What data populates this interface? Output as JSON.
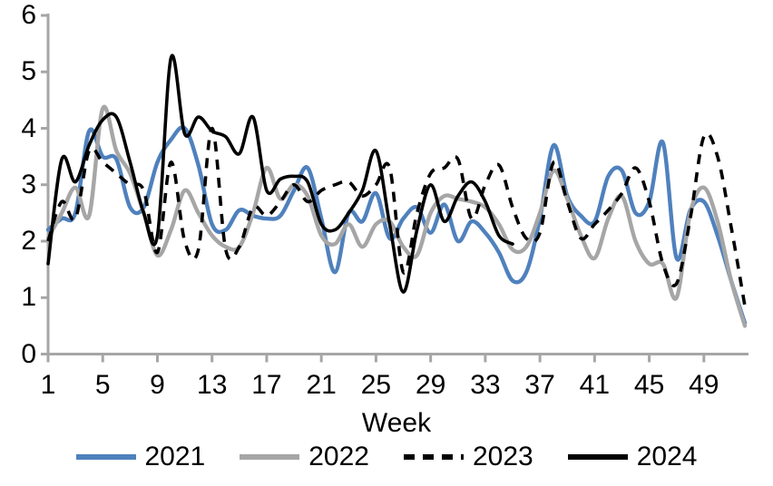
{
  "chart_data": {
    "type": "line",
    "title": "",
    "xlabel": "Week",
    "ylabel": "",
    "xlim": [
      1,
      52
    ],
    "ylim": [
      0,
      6
    ],
    "grid": false,
    "legend_position": "bottom",
    "axis_color": "#A6A6A6",
    "text_color": "#000000",
    "xticks": [
      1,
      5,
      9,
      13,
      17,
      21,
      25,
      29,
      33,
      37,
      41,
      45,
      49
    ],
    "yticks": [
      0,
      1,
      2,
      3,
      4,
      5,
      6
    ],
    "x_weeks": [
      1,
      2,
      3,
      4,
      5,
      6,
      7,
      8,
      9,
      10,
      11,
      12,
      13,
      14,
      15,
      16,
      17,
      18,
      19,
      20,
      21,
      22,
      23,
      24,
      25,
      26,
      27,
      28,
      29,
      30,
      31,
      32,
      33,
      34,
      35,
      36,
      37,
      38,
      39,
      40,
      41,
      42,
      43,
      44,
      45,
      46,
      47,
      48,
      49,
      50,
      51,
      52
    ],
    "series": [
      {
        "name": "2021",
        "color": "#4F81BD",
        "style": "solid",
        "width": 4.4,
        "values": [
          2.2,
          2.4,
          2.5,
          3.95,
          3.5,
          3.45,
          2.6,
          2.6,
          3.4,
          3.8,
          4.0,
          3.35,
          2.3,
          2.2,
          2.55,
          2.45,
          2.4,
          2.45,
          2.9,
          3.3,
          2.4,
          1.45,
          2.5,
          2.35,
          2.85,
          2.05,
          2.4,
          2.6,
          2.15,
          2.65,
          2.0,
          2.35,
          2.15,
          1.8,
          1.3,
          1.45,
          2.4,
          3.7,
          2.8,
          2.45,
          2.35,
          3.15,
          3.25,
          2.5,
          2.7,
          3.75,
          1.7,
          2.55,
          2.7,
          2.1,
          1.3,
          0.55
        ]
      },
      {
        "name": "2022",
        "color": "#A6A6A6",
        "style": "solid",
        "width": 4.4,
        "values": [
          2.05,
          2.5,
          2.95,
          2.45,
          4.35,
          3.6,
          3.2,
          2.5,
          1.75,
          2.2,
          2.9,
          2.5,
          2.1,
          1.9,
          1.9,
          2.5,
          3.3,
          2.75,
          3.0,
          2.8,
          2.1,
          1.95,
          2.3,
          1.9,
          2.3,
          2.35,
          1.9,
          1.75,
          2.5,
          2.8,
          2.75,
          2.7,
          2.6,
          2.3,
          1.85,
          1.9,
          2.5,
          3.25,
          2.75,
          2.1,
          1.7,
          2.4,
          2.8,
          2.0,
          1.6,
          1.6,
          1.0,
          2.5,
          2.95,
          2.35,
          1.3,
          0.5
        ]
      },
      {
        "name": "2023",
        "color": "#000000",
        "style": "dashed",
        "width": 3.6,
        "values": [
          2.0,
          2.7,
          2.4,
          3.6,
          3.4,
          3.2,
          3.0,
          2.9,
          1.8,
          3.4,
          2.0,
          1.85,
          4.0,
          1.85,
          1.9,
          2.6,
          2.45,
          2.7,
          3.0,
          2.7,
          2.9,
          3.0,
          3.05,
          2.8,
          3.0,
          3.3,
          1.45,
          2.5,
          3.2,
          3.3,
          3.45,
          2.4,
          3.0,
          3.35,
          2.6,
          2.05,
          2.15,
          3.4,
          2.7,
          2.05,
          2.3,
          2.55,
          2.85,
          3.3,
          2.7,
          1.6,
          1.25,
          2.4,
          3.85,
          3.5,
          2.25,
          0.85
        ]
      },
      {
        "name": "2024",
        "color": "#000000",
        "style": "solid",
        "width": 3.6,
        "values": [
          1.6,
          3.45,
          3.05,
          3.7,
          4.15,
          4.2,
          3.4,
          2.5,
          2.1,
          5.25,
          3.9,
          4.2,
          3.95,
          3.85,
          3.55,
          4.2,
          2.9,
          3.1,
          3.15,
          3.05,
          2.3,
          2.2,
          2.5,
          2.9,
          3.6,
          2.3,
          1.1,
          2.2,
          3.0,
          2.35,
          2.8,
          3.05,
          2.7,
          2.1,
          1.95
        ]
      }
    ]
  },
  "legend": {
    "items": [
      {
        "label": "2021"
      },
      {
        "label": "2022"
      },
      {
        "label": "2023"
      },
      {
        "label": "2024"
      }
    ]
  }
}
